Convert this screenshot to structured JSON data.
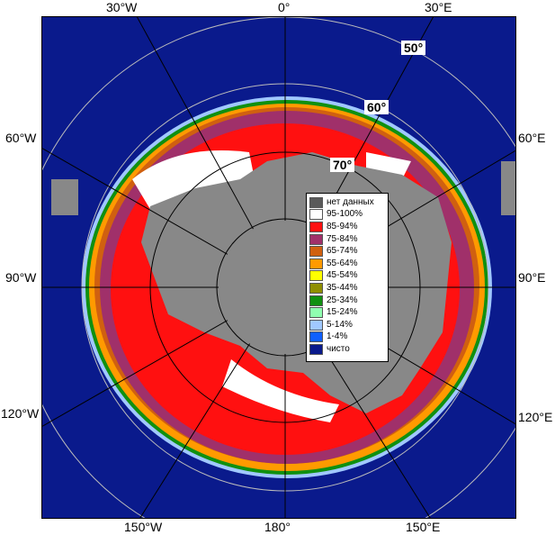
{
  "map": {
    "longitude_labels": {
      "top": [
        "30°W",
        "0°",
        "30°E"
      ],
      "left": [
        "60°W",
        "90°W",
        "120°W"
      ],
      "right": [
        "60°E",
        "90°E",
        "120°E"
      ],
      "bottom": [
        "150°W",
        "180°",
        "150°E"
      ]
    },
    "latitude_labels": [
      "50°",
      "60°",
      "70°"
    ],
    "colors": {
      "open_water": "#0a1a8c",
      "land": "#888888",
      "ice_95_100": "#ffffff",
      "ice_85_94": "#ff1010",
      "ice_75_84": "#a0306a",
      "ice_65_74": "#d06010"
    }
  },
  "legend": {
    "items": [
      {
        "label": "нет данных",
        "color": "#5a5a5a"
      },
      {
        "label": "95-100%",
        "color": "#ffffff"
      },
      {
        "label": "85-94%",
        "color": "#ff1010"
      },
      {
        "label": "75-84%",
        "color": "#a0306a"
      },
      {
        "label": "65-74%",
        "color": "#d06010"
      },
      {
        "label": "55-64%",
        "color": "#ff9a00"
      },
      {
        "label": "45-54%",
        "color": "#ffff00"
      },
      {
        "label": "35-44%",
        "color": "#909000"
      },
      {
        "label": "25-34%",
        "color": "#109010"
      },
      {
        "label": "15-24%",
        "color": "#90ffb0"
      },
      {
        "label": "5-14%",
        "color": "#a0c8ff"
      },
      {
        "label": "1-4%",
        "color": "#1060ff"
      },
      {
        "label": "чисто",
        "color": "#0a1a8c"
      }
    ]
  }
}
